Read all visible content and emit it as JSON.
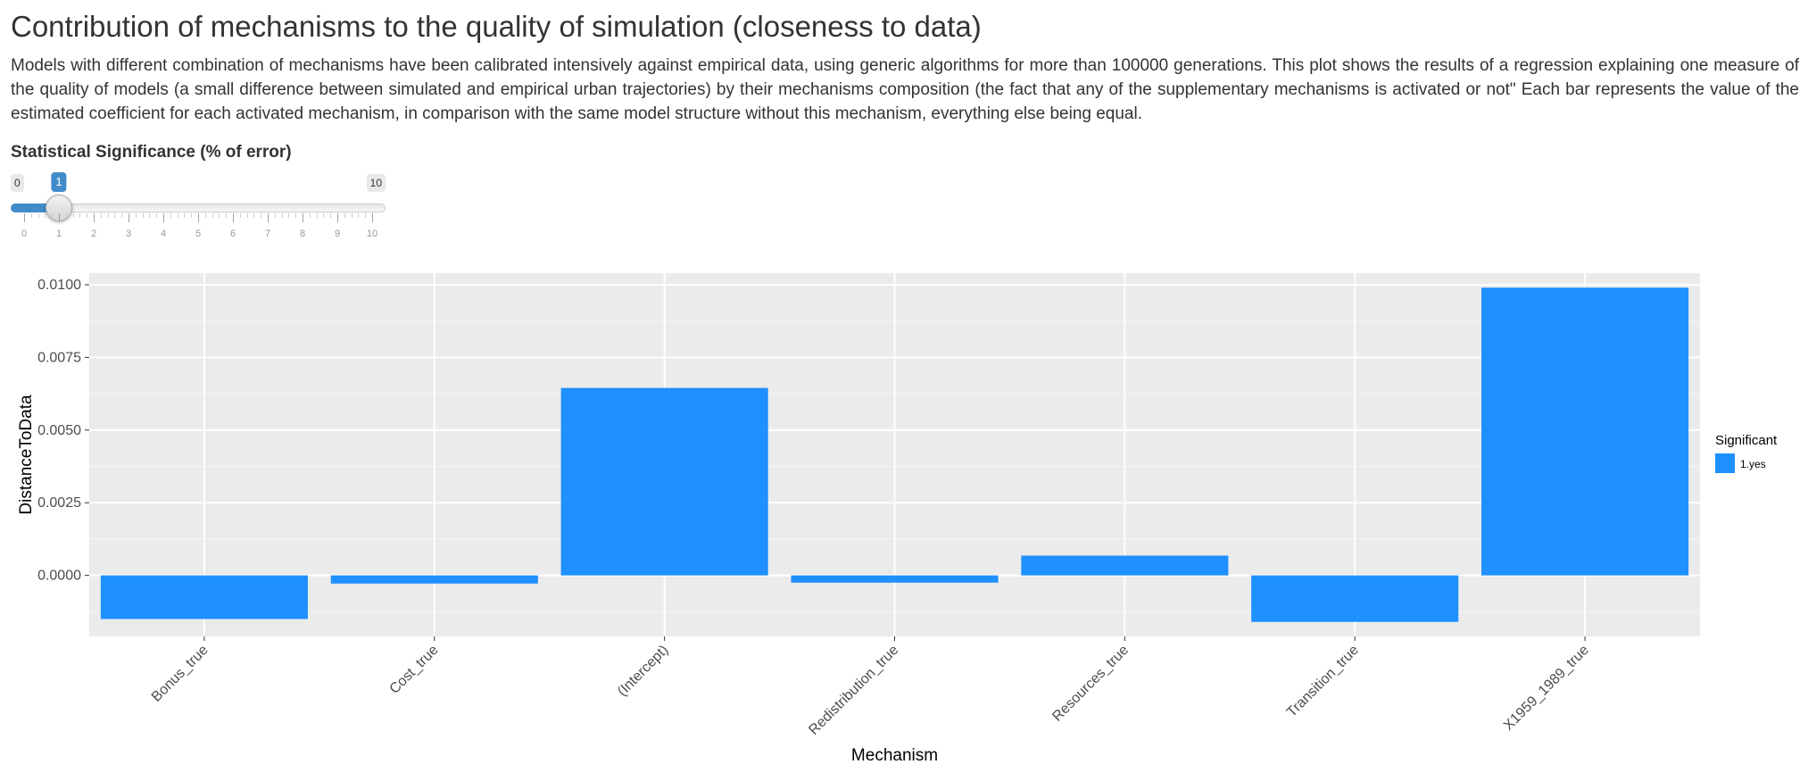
{
  "page": {
    "title": "Contribution of mechanisms to the quality of simulation (closeness to data)",
    "description": "Models with different combination of mechanisms have been calibrated intensively against empirical data, using generic algorithms for more than 100000 generations. This plot shows the results of a regression explaining one measure of the quality of models (a small difference between simulated and empirical urban trajectories) by their mechanisms composition (the fact that any of the supplementary mechanisms is activated or not\" Each bar represents the value of the estimated coefficient for each activated mechanism, in comparison with the same model structure without this mechanism, everything else being equal."
  },
  "slider": {
    "label": "Statistical Significance (% of error)",
    "min": 0,
    "max": 10,
    "value": 1,
    "min_label": "0",
    "max_label": "10",
    "value_label": "1",
    "ticks": [
      "0",
      "1",
      "2",
      "3",
      "4",
      "5",
      "6",
      "7",
      "8",
      "9",
      "10"
    ],
    "accent_color": "#428bca"
  },
  "chart_data": {
    "type": "bar",
    "categories": [
      "Bonus_true",
      "Cost_true",
      "(Intercept)",
      "Redistribution_true",
      "Resources_true",
      "Transition_true",
      "X1959_1989_true"
    ],
    "values": [
      -0.0015,
      -0.00028,
      0.00645,
      -0.00025,
      0.00068,
      -0.0016,
      0.0099
    ],
    "xlabel": "Mechanism",
    "ylabel": "DistanceToData",
    "ylim": [
      -0.0021,
      0.0104
    ],
    "yticks": [
      "0.0000",
      "0.0025",
      "0.0050",
      "0.0075",
      "0.0100"
    ],
    "ytick_values": [
      0,
      0.0025,
      0.005,
      0.0075,
      0.01
    ],
    "grid": true,
    "legend": {
      "title": "Significant",
      "entries": [
        {
          "label": "1.yes",
          "color": "#1e90ff"
        }
      ],
      "placement": "right"
    },
    "bar_color": "#1e90ff",
    "panel_color": "#ebebeb"
  }
}
